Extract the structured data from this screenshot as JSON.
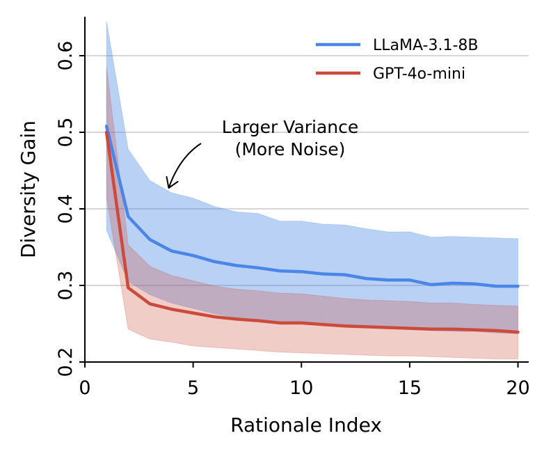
{
  "chart_data": {
    "type": "line",
    "title": "",
    "xlabel": "Rationale Index",
    "ylabel": "Diversity Gain",
    "xlim": [
      0,
      20.5
    ],
    "ylim": [
      0.2,
      0.65
    ],
    "xticks": [
      0,
      5,
      10,
      15,
      20
    ],
    "xtick_labels": [
      "0",
      "5",
      "10",
      "15",
      "20"
    ],
    "yticks": [
      0.2,
      0.3,
      0.4,
      0.5,
      0.6
    ],
    "ytick_labels": [
      "0.2",
      "0.3",
      "0.4",
      "0.5",
      "0.6"
    ],
    "grid": "horizontal",
    "legend_position": "top-right",
    "x": [
      1,
      2,
      3,
      4,
      5,
      6,
      7,
      8,
      9,
      10,
      11,
      12,
      13,
      14,
      15,
      16,
      17,
      18,
      19,
      20
    ],
    "series": [
      {
        "name": "LLaMA-3.1-8B",
        "color": "#4a86e8",
        "values": [
          0.508,
          0.39,
          0.36,
          0.345,
          0.339,
          0.331,
          0.326,
          0.323,
          0.319,
          0.318,
          0.315,
          0.314,
          0.309,
          0.307,
          0.307,
          0.301,
          0.303,
          0.302,
          0.299,
          0.299
        ],
        "upper": [
          0.645,
          0.478,
          0.437,
          0.421,
          0.414,
          0.403,
          0.396,
          0.394,
          0.384,
          0.384,
          0.38,
          0.379,
          0.374,
          0.37,
          0.37,
          0.363,
          0.364,
          0.363,
          0.362,
          0.361
        ],
        "lower": [
          0.372,
          0.305,
          0.288,
          0.277,
          0.27,
          0.263,
          0.258,
          0.255,
          0.252,
          0.25,
          0.248,
          0.247,
          0.246,
          0.244,
          0.243,
          0.241,
          0.24,
          0.24,
          0.238,
          0.237
        ]
      },
      {
        "name": "GPT-4o-mini",
        "color": "#cc4a3b",
        "values": [
          0.5,
          0.297,
          0.276,
          0.269,
          0.264,
          0.259,
          0.256,
          0.254,
          0.251,
          0.251,
          0.249,
          0.247,
          0.246,
          0.245,
          0.244,
          0.243,
          0.243,
          0.242,
          0.241,
          0.239
        ],
        "upper": [
          0.585,
          0.353,
          0.325,
          0.313,
          0.306,
          0.299,
          0.295,
          0.293,
          0.29,
          0.289,
          0.286,
          0.283,
          0.281,
          0.28,
          0.279,
          0.277,
          0.277,
          0.275,
          0.274,
          0.273
        ],
        "lower": [
          0.415,
          0.243,
          0.23,
          0.226,
          0.221,
          0.219,
          0.217,
          0.215,
          0.213,
          0.212,
          0.211,
          0.21,
          0.209,
          0.208,
          0.208,
          0.207,
          0.206,
          0.205,
          0.204,
          0.204
        ]
      }
    ],
    "annotations": [
      {
        "lines": [
          "Larger Variance",
          "(More Noise)"
        ],
        "arrow_to": [
          4,
          0.43
        ]
      }
    ]
  }
}
